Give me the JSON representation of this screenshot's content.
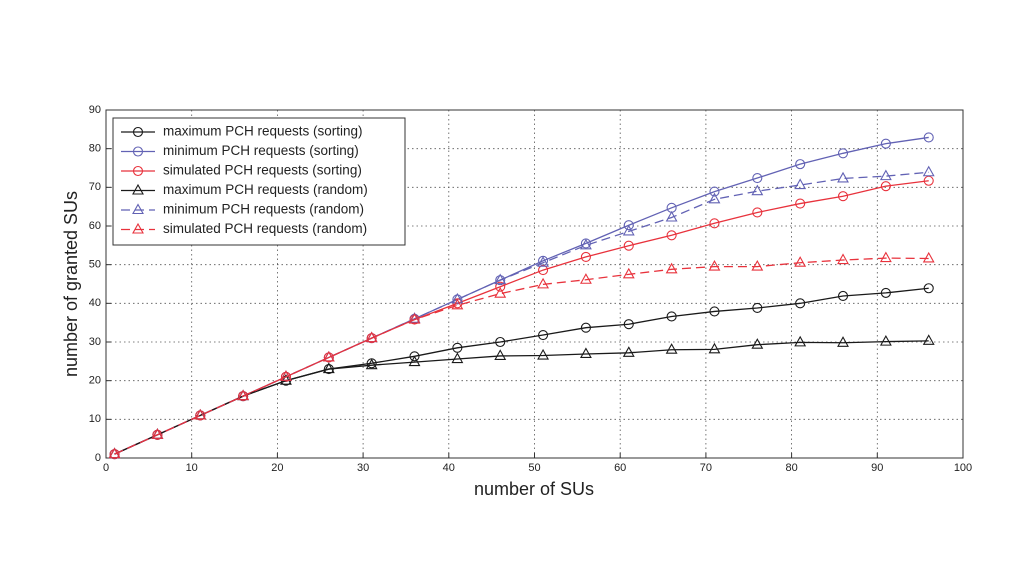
{
  "chart_data": {
    "type": "line",
    "x_label": "number of SUs",
    "y_label": "number of granted SUs",
    "x": [
      1,
      6,
      11,
      16,
      21,
      26,
      31,
      36,
      41,
      46,
      51,
      56,
      61,
      66,
      71,
      76,
      81,
      86,
      91,
      96
    ],
    "series": [
      {
        "name": "maximum PCH requests (sorting)",
        "color": "#1a1a1a",
        "marker": "circle",
        "linestyle": "solid",
        "values": [
          1,
          6,
          11,
          16,
          20,
          23,
          24.5,
          26.3,
          28.5,
          30,
          31.8,
          33.7,
          34.6,
          36.6,
          37.9,
          38.8,
          40,
          41.9,
          42.7,
          43.9
        ]
      },
      {
        "name": "minimum PCH requests (sorting)",
        "color": "#6262b4",
        "marker": "circle",
        "linestyle": "solid",
        "values": [
          1,
          6,
          11,
          16,
          21,
          26,
          31,
          36,
          41,
          46,
          51,
          55.5,
          60.2,
          64.7,
          68.9,
          72.4,
          76,
          78.8,
          81.3,
          82.9
        ]
      },
      {
        "name": "simulated PCH requests (sorting)",
        "color": "#e8323c",
        "marker": "circle",
        "linestyle": "solid",
        "values": [
          1,
          6,
          11,
          16,
          21,
          26,
          31,
          35.8,
          40,
          44.3,
          48.6,
          52,
          54.9,
          57.6,
          60.7,
          63.5,
          65.8,
          67.7,
          70.3,
          71.7
        ]
      },
      {
        "name": "maximum PCH requests (random)",
        "color": "#1a1a1a",
        "marker": "triangle",
        "linestyle": "solid",
        "values": [
          1,
          6,
          11,
          16,
          20,
          23,
          24,
          24.8,
          25.6,
          26.4,
          26.5,
          26.9,
          27.2,
          28,
          28.1,
          29.3,
          29.9,
          29.8,
          30.1,
          30.3
        ]
      },
      {
        "name": "minimum PCH requests (random)",
        "color": "#6262b4",
        "marker": "triangle",
        "linestyle": "dashed",
        "values": [
          1,
          6,
          11,
          16,
          21,
          26,
          31,
          36,
          41,
          46,
          50.5,
          55,
          58.6,
          62.2,
          66.9,
          69,
          70.6,
          72.3,
          72.9,
          73.9
        ]
      },
      {
        "name": "simulated PCH requests (random)",
        "color": "#e8323c",
        "marker": "triangle",
        "linestyle": "dashed",
        "values": [
          1,
          6,
          11,
          16,
          21,
          26,
          31,
          35.8,
          39.5,
          42.5,
          44.9,
          46.1,
          47.5,
          48.8,
          49.5,
          49.5,
          50.5,
          51.2,
          51.7,
          51.6
        ]
      }
    ],
    "xlim": [
      0,
      100
    ],
    "xticks": [
      0,
      10,
      20,
      30,
      40,
      50,
      60,
      70,
      80,
      90,
      100
    ],
    "ylim": [
      0,
      90
    ],
    "yticks": [
      0,
      10,
      20,
      30,
      40,
      50,
      60,
      70,
      80,
      90
    ],
    "grid": true,
    "legend": "upper left"
  }
}
